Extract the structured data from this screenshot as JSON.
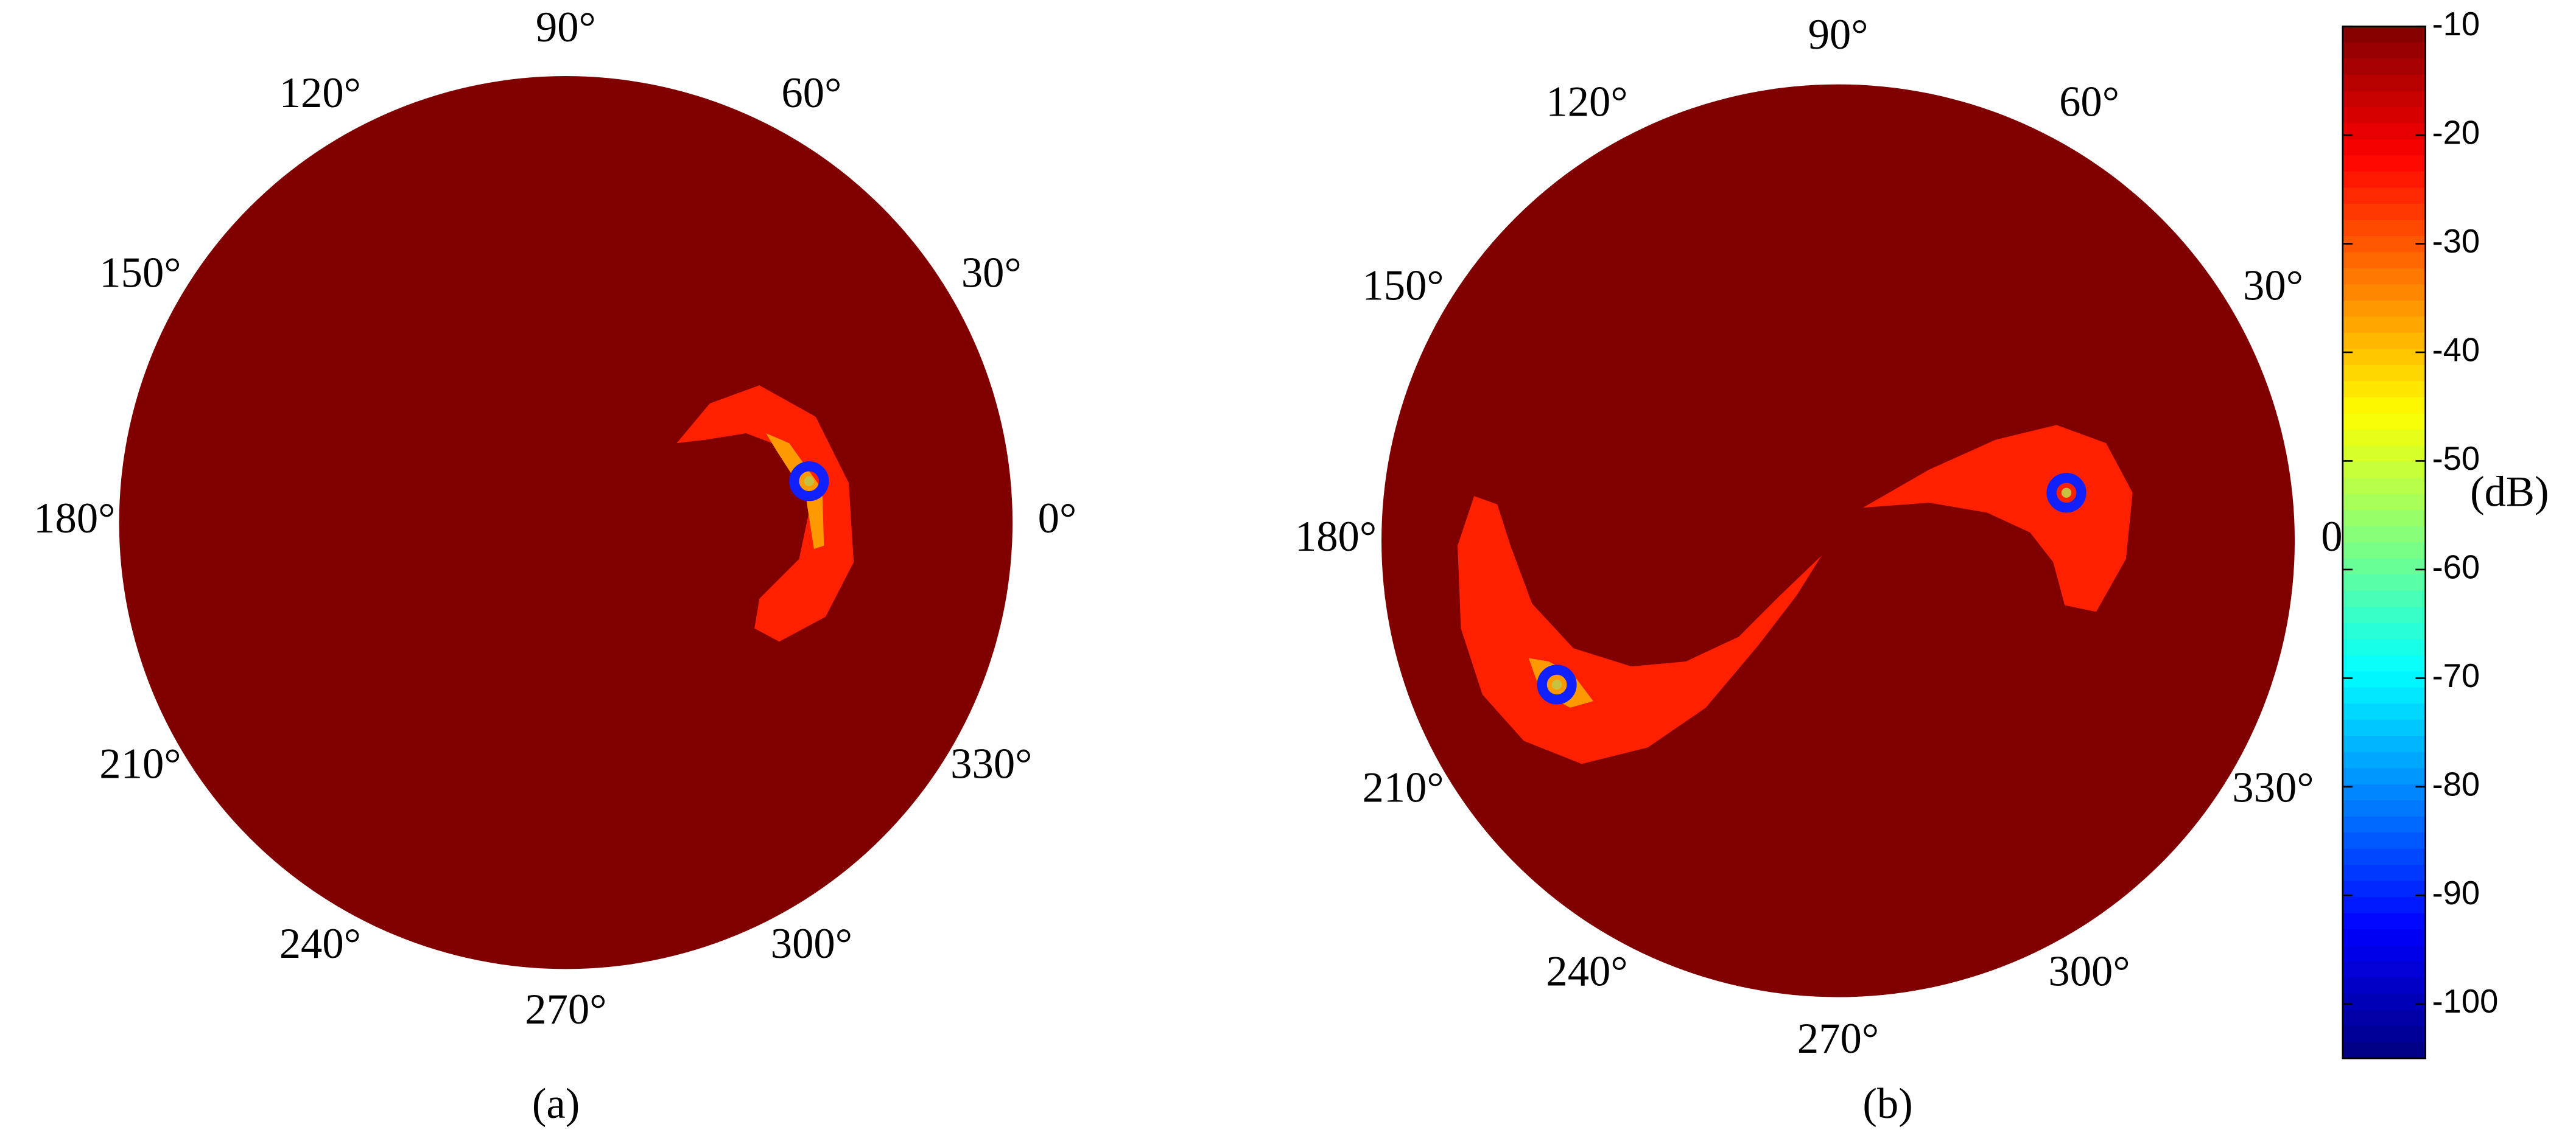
{
  "chart_data": [
    {
      "type": "polar-heatmap",
      "label": "(a)",
      "thetaticks": [
        {
          "value": 0,
          "label": "0°"
        },
        {
          "value": 30,
          "label": "30°"
        },
        {
          "value": 60,
          "label": "60°"
        },
        {
          "value": 90,
          "label": "90°"
        },
        {
          "value": 120,
          "label": "120°"
        },
        {
          "value": 150,
          "label": "150°"
        },
        {
          "value": 180,
          "label": "180°"
        },
        {
          "value": 210,
          "label": "210°"
        },
        {
          "value": 240,
          "label": "240°"
        },
        {
          "value": 270,
          "label": "270°"
        },
        {
          "value": 300,
          "label": "300°"
        },
        {
          "value": 330,
          "label": "330°"
        }
      ]
    },
    {
      "type": "polar-heatmap",
      "label": "(b)",
      "thetaticks": [
        {
          "value": 0,
          "label": "0°"
        },
        {
          "value": 30,
          "label": "30°"
        },
        {
          "value": 60,
          "label": "60°"
        },
        {
          "value": 90,
          "label": "90°"
        },
        {
          "value": 120,
          "label": "120°"
        },
        {
          "value": 150,
          "label": "150°"
        },
        {
          "value": 180,
          "label": "180°"
        },
        {
          "value": 210,
          "label": "210°"
        },
        {
          "value": 240,
          "label": "240°"
        },
        {
          "value": 270,
          "label": "270°"
        },
        {
          "value": 300,
          "label": "300°"
        },
        {
          "value": 330,
          "label": "330°"
        }
      ],
      "colorbar": {
        "label": "(dB)",
        "colormap": "jet",
        "clim": [
          -105,
          -10
        ],
        "ticks": [
          -10,
          -20,
          -30,
          -40,
          -50,
          -60,
          -70,
          -80,
          -90,
          -100
        ]
      }
    }
  ]
}
